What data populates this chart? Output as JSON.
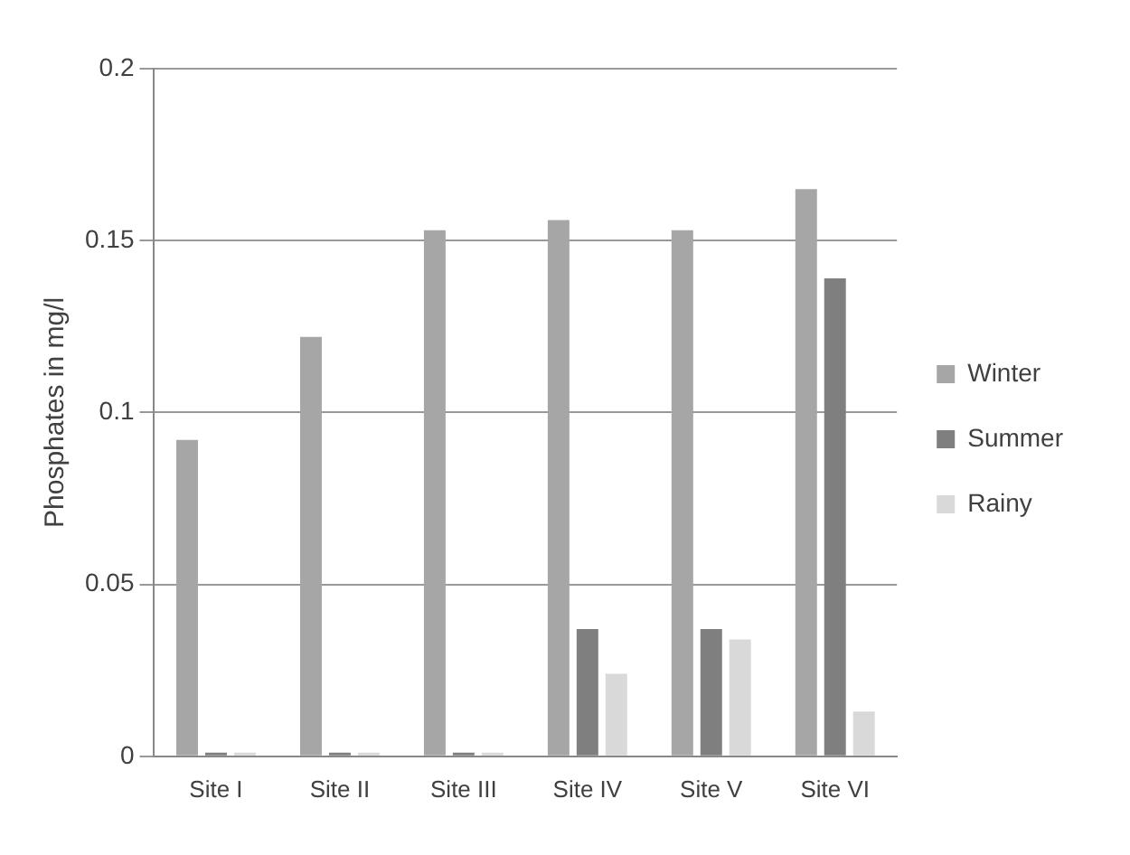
{
  "chart_data": {
    "type": "bar",
    "ylabel": "Phosphates in mg/l",
    "categories": [
      "Site I",
      "Site II",
      "Site III",
      "Site IV",
      "Site V",
      "Site VI"
    ],
    "series": [
      {
        "name": "Winter",
        "color": "#a6a6a6",
        "values": [
          0.092,
          0.122,
          0.153,
          0.156,
          0.153,
          0.165
        ]
      },
      {
        "name": "Summer",
        "color": "#7f7f7f",
        "values": [
          0,
          0,
          0,
          0.037,
          0.037,
          0.139
        ]
      },
      {
        "name": "Rainy",
        "color": "#d9d9d9",
        "values": [
          0,
          0,
          0,
          0.024,
          0.034,
          0.013
        ]
      }
    ],
    "ylim": [
      0,
      0.2
    ],
    "yticks": [
      0,
      0.05,
      0.1,
      0.15,
      0.2
    ],
    "grid": "y",
    "legend": "right"
  }
}
